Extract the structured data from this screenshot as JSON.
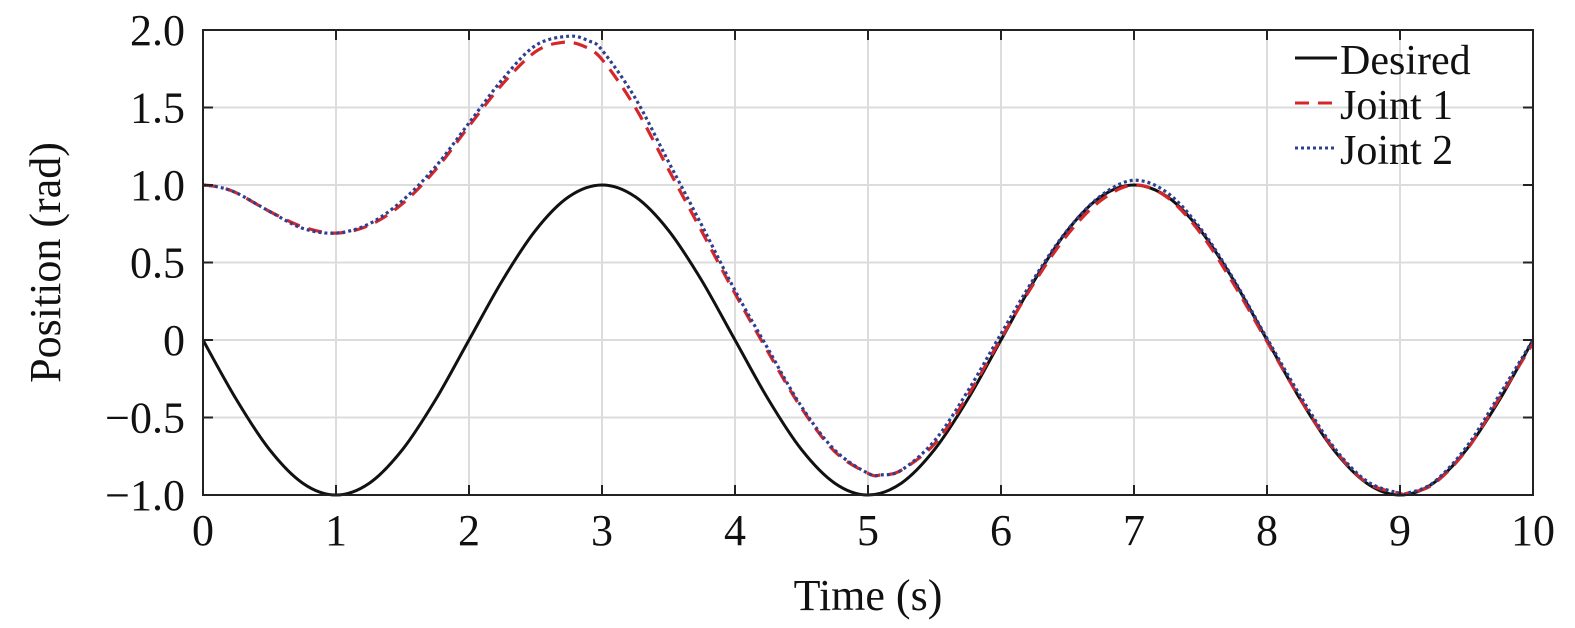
{
  "chart_data": {
    "type": "line",
    "title": "",
    "xlabel": "Time (s)",
    "ylabel": "Position (rad)",
    "xlim": [
      0,
      10
    ],
    "ylim": [
      -1.0,
      2.0
    ],
    "xticks": [
      0,
      1,
      2,
      3,
      4,
      5,
      6,
      7,
      8,
      9,
      10
    ],
    "xtick_labels": [
      "0",
      "1",
      "2",
      "3",
      "4",
      "5",
      "6",
      "7",
      "8",
      "9",
      "10"
    ],
    "yticks": [
      -1.0,
      -0.5,
      0,
      0.5,
      1.0,
      1.5,
      2.0
    ],
    "ytick_labels": [
      "−1.0",
      "−0.5",
      "0",
      "0.5",
      "1.0",
      "1.5",
      "2.0"
    ],
    "grid": true,
    "legend_position": "top-right",
    "series": [
      {
        "name": "Desired",
        "color": "#111111",
        "style": "solid",
        "x": [
          0,
          0.25,
          0.5,
          0.75,
          1,
          1.25,
          1.5,
          1.75,
          2,
          2.25,
          2.5,
          2.75,
          3,
          3.25,
          3.5,
          3.75,
          4,
          4.25,
          4.5,
          4.75,
          5,
          5.25,
          5.5,
          5.75,
          6,
          6.25,
          6.5,
          6.75,
          7,
          7.25,
          7.5,
          7.75,
          8,
          8.25,
          8.5,
          8.75,
          9,
          9.25,
          9.5,
          9.75,
          10
        ],
        "y": [
          0,
          -0.383,
          -0.707,
          -0.924,
          -1,
          -0.924,
          -0.707,
          -0.383,
          0,
          0.383,
          0.707,
          0.924,
          1,
          0.924,
          0.707,
          0.383,
          0,
          -0.383,
          -0.707,
          -0.924,
          -1,
          -0.924,
          -0.707,
          -0.383,
          0,
          0.383,
          0.707,
          0.924,
          1,
          0.924,
          0.707,
          0.383,
          0,
          -0.383,
          -0.707,
          -0.924,
          -1,
          -0.924,
          -0.707,
          -0.383,
          0
        ]
      },
      {
        "name": "Joint 1",
        "color": "#d62728",
        "style": "dashed",
        "x": [
          0,
          0.1,
          0.25,
          0.5,
          0.75,
          1,
          1.25,
          1.5,
          1.75,
          2,
          2.25,
          2.5,
          2.7,
          2.85,
          3,
          3.25,
          3.5,
          3.75,
          4,
          4.25,
          4.5,
          4.75,
          5,
          5.1,
          5.25,
          5.5,
          5.75,
          6,
          6.25,
          6.5,
          6.75,
          7,
          7.25,
          7.5,
          7.75,
          8,
          8.25,
          8.5,
          8.75,
          9,
          9.05,
          9.25,
          9.5,
          9.75,
          10
        ],
        "y": [
          1,
          0.99,
          0.95,
          0.83,
          0.73,
          0.69,
          0.74,
          0.88,
          1.1,
          1.38,
          1.65,
          1.86,
          1.92,
          1.9,
          1.81,
          1.5,
          1.1,
          0.7,
          0.3,
          -0.08,
          -0.44,
          -0.72,
          -0.86,
          -0.87,
          -0.84,
          -0.67,
          -0.36,
          0.01,
          0.37,
          0.68,
          0.9,
          1.0,
          0.92,
          0.69,
          0.36,
          -0.01,
          -0.38,
          -0.7,
          -0.92,
          -0.99,
          -0.99,
          -0.93,
          -0.71,
          -0.37,
          -0.02
        ]
      },
      {
        "name": "Joint 2",
        "color": "#2f3f8f",
        "style": "dotted",
        "x": [
          0,
          0.1,
          0.25,
          0.5,
          0.75,
          1,
          1.25,
          1.5,
          1.75,
          2,
          2.25,
          2.5,
          2.75,
          2.9,
          3,
          3.25,
          3.5,
          3.75,
          4,
          4.25,
          4.5,
          4.75,
          5,
          5.1,
          5.25,
          5.5,
          5.75,
          6,
          6.25,
          6.5,
          6.75,
          7,
          7.25,
          7.5,
          7.75,
          8,
          8.25,
          8.5,
          8.75,
          9,
          9.05,
          9.25,
          9.5,
          9.75,
          10
        ],
        "y": [
          1,
          0.99,
          0.95,
          0.83,
          0.72,
          0.69,
          0.75,
          0.9,
          1.12,
          1.4,
          1.68,
          1.9,
          1.96,
          1.93,
          1.87,
          1.56,
          1.15,
          0.74,
          0.32,
          -0.06,
          -0.43,
          -0.71,
          -0.86,
          -0.87,
          -0.84,
          -0.65,
          -0.33,
          0.04,
          0.4,
          0.71,
          0.93,
          1.03,
          0.95,
          0.72,
          0.39,
          0.01,
          -0.36,
          -0.69,
          -0.91,
          -0.99,
          -0.99,
          -0.92,
          -0.69,
          -0.35,
          0.0
        ]
      }
    ]
  }
}
